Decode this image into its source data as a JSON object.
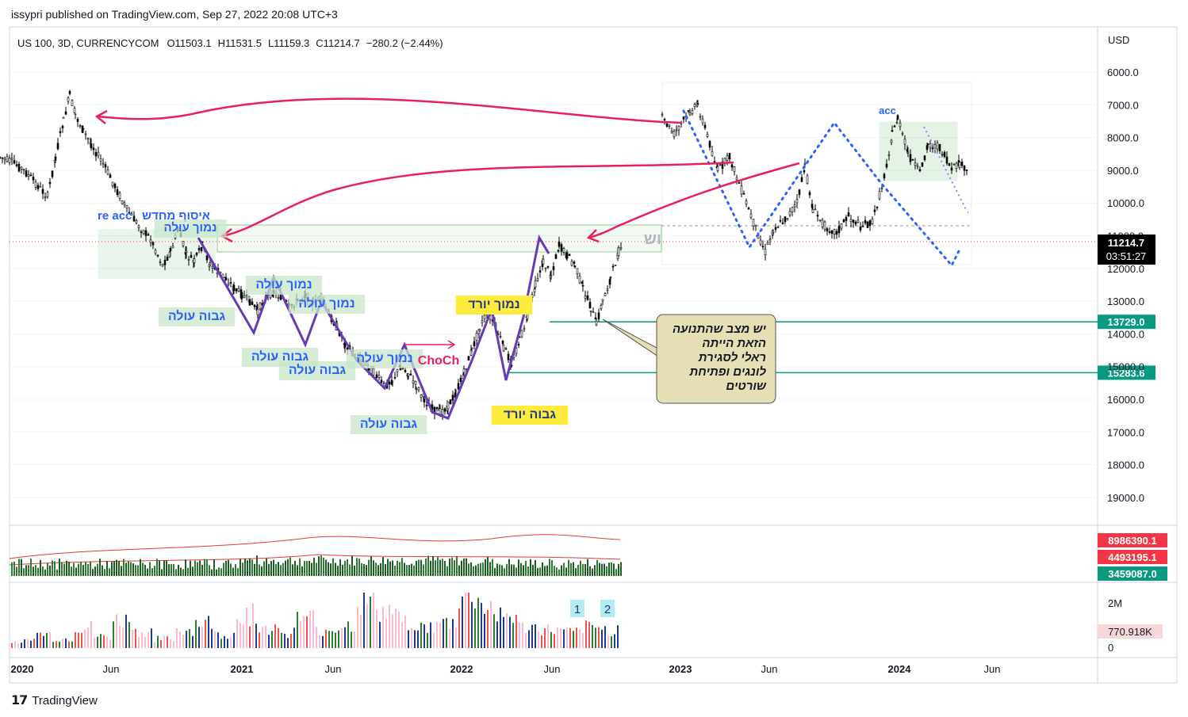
{
  "header": {
    "published": "issypri published on TradingView.com, Sep 27, 2022 20:08 UTC+3"
  },
  "legend": {
    "symbol": "US 100, 3D, CURRENCYCOM",
    "open": "O11503.1",
    "high": "H11531.5",
    "low": "L11159.3",
    "close": "C11214.7",
    "change": "−280.2 (−2.44%)"
  },
  "footer": {
    "brand": "TradingView"
  },
  "colors": {
    "up": "#26a69a",
    "down": "#000000",
    "arrow": "#e91e63",
    "zigzag": "#673ab7",
    "projection": "#2962ff",
    "level": "#089981"
  },
  "chart_data": [
    {
      "type": "candlestick",
      "title": "US 100, 3D, CURRENCYCOM",
      "y_axis": {
        "currency": "USD",
        "inverted": true,
        "ticks": [
          6000,
          7000,
          8000,
          9000,
          10000,
          11000,
          12000,
          13000,
          14000,
          15000,
          16000,
          17000,
          18000,
          19000
        ],
        "tick_labels": [
          "6000.0",
          "7000.0",
          "8000.0",
          "9000.0",
          "10000.0",
          "11000.0",
          "12000.0",
          "13000.0",
          "14000.0",
          "15000.0",
          "16000.0",
          "17000.0",
          "18000.0",
          "19000.0"
        ],
        "ylim": [
          5000,
          20000
        ]
      },
      "x_axis": {
        "ticks": [
          "2020",
          "Jun",
          "2021",
          "Jun",
          "2022",
          "Jun",
          "2023",
          "Jun",
          "2024",
          "Jun"
        ]
      },
      "last_price": {
        "value": "11214.7",
        "countdown": "03:51:27"
      },
      "levels": [
        {
          "value": 13729.0,
          "label": "13729.0"
        },
        {
          "value": 15283.6,
          "label": "15283.6"
        }
      ],
      "annotations": {
        "labels_blue": [
          "re acc",
          "איסוף מחדש",
          "נמוך עולה",
          "גבוה עולה",
          "נמוך עולה",
          "נמוך עולה",
          "גבוה עולה",
          "גבוה עולה",
          "גבוה עולה",
          "נמוך עולה",
          "גבוה עולה",
          "acc"
        ],
        "labels_yellow": [
          "נמוך יורד",
          "גבוה יורד"
        ],
        "choch": "ChoCh",
        "watermark": "וש",
        "callout": [
          "יש מצב שהתנועה",
          "הזאת הייתה",
          "ראלי לסגירת",
          "לונגים ופתיחת",
          "שורטים"
        ]
      },
      "series": [
        {
          "name": "price",
          "points": [
            [
              0,
              8600
            ],
            [
              15,
              8750
            ],
            [
              30,
              9000
            ],
            [
              45,
              9400
            ],
            [
              60,
              9800
            ],
            [
              70,
              8600
            ],
            [
              80,
              7500
            ],
            [
              88,
              6700
            ],
            [
              95,
              7300
            ],
            [
              105,
              7800
            ],
            [
              115,
              8200
            ],
            [
              130,
              8800
            ],
            [
              145,
              9500
            ],
            [
              160,
              10200
            ],
            [
              175,
              10700
            ],
            [
              190,
              11100
            ],
            [
              205,
              11900
            ],
            [
              215,
              11500
            ],
            [
              225,
              10800
            ],
            [
              235,
              11600
            ],
            [
              245,
              11800
            ],
            [
              255,
              11300
            ],
            [
              265,
              11900
            ],
            [
              275,
              12100
            ],
            [
              285,
              12300
            ],
            [
              295,
              12600
            ],
            [
              305,
              12800
            ],
            [
              315,
              13000
            ],
            [
              325,
              13300
            ],
            [
              335,
              12900
            ],
            [
              345,
              12700
            ],
            [
              355,
              12900
            ],
            [
              365,
              13200
            ],
            [
              375,
              13000
            ],
            [
              385,
              12800
            ],
            [
              395,
              13100
            ],
            [
              405,
              12900
            ],
            [
              415,
              13400
            ],
            [
              425,
              13800
            ],
            [
              435,
              14300
            ],
            [
              445,
              14600
            ],
            [
              455,
              14800
            ],
            [
              465,
              15000
            ],
            [
              475,
              15300
            ],
            [
              485,
              15600
            ],
            [
              495,
              15400
            ],
            [
              505,
              15000
            ],
            [
              515,
              15200
            ],
            [
              525,
              15600
            ],
            [
              535,
              16000
            ],
            [
              545,
              16300
            ],
            [
              555,
              16400
            ],
            [
              565,
              16200
            ],
            [
              575,
              15800
            ],
            [
              585,
              15200
            ],
            [
              595,
              14500
            ],
            [
              605,
              13800
            ],
            [
              615,
              13300
            ],
            [
              625,
              13800
            ],
            [
              635,
              14400
            ],
            [
              645,
              14900
            ],
            [
              655,
              14200
            ],
            [
              665,
              13500
            ],
            [
              675,
              12500
            ],
            [
              685,
              11800
            ],
            [
              695,
              12200
            ],
            [
              705,
              11300
            ],
            [
              715,
              11600
            ],
            [
              725,
              11900
            ],
            [
              735,
              12600
            ],
            [
              745,
              13200
            ],
            [
              752,
              13700
            ],
            [
              760,
              13000
            ],
            [
              770,
              12300
            ],
            [
              780,
              11500
            ],
            [
              786,
              11215
            ]
          ]
        },
        {
          "name": "volume",
          "values": [
            1.2,
            1.5,
            1.8,
            2.1,
            1.6,
            1.9,
            2.4,
            2.0,
            1.7,
            2.2,
            1.9,
            2.5,
            2.1,
            1.8,
            2.3,
            2.6,
            2.0,
            2.2,
            1.9,
            2.4,
            2.1,
            2.3,
            1.8,
            2.0,
            2.5,
            2.2,
            1.9,
            2.1,
            2.4,
            2.0
          ]
        },
        {
          "name": "volume_indicator",
          "values": [
            0.3,
            0.6,
            0.4,
            0.9,
            0.5,
            1.2,
            0.7,
            0.4,
            0.8,
            1.1,
            0.6,
            1.5,
            0.9,
            0.7,
            1.3,
            0.8,
            1.0,
            2.0,
            1.6,
            1.2,
            0.9,
            1.1,
            2.3,
            1.8,
            1.4,
            0.9,
            0.8,
            0.7,
            0.9,
            0.8
          ]
        }
      ],
      "volume_labels": [
        "8986390.1",
        "4493195.1",
        "3459087.0"
      ],
      "indicator_labels": [
        "2M",
        "770.918K",
        "0"
      ],
      "indicator_markers": [
        "1",
        "2"
      ]
    }
  ]
}
